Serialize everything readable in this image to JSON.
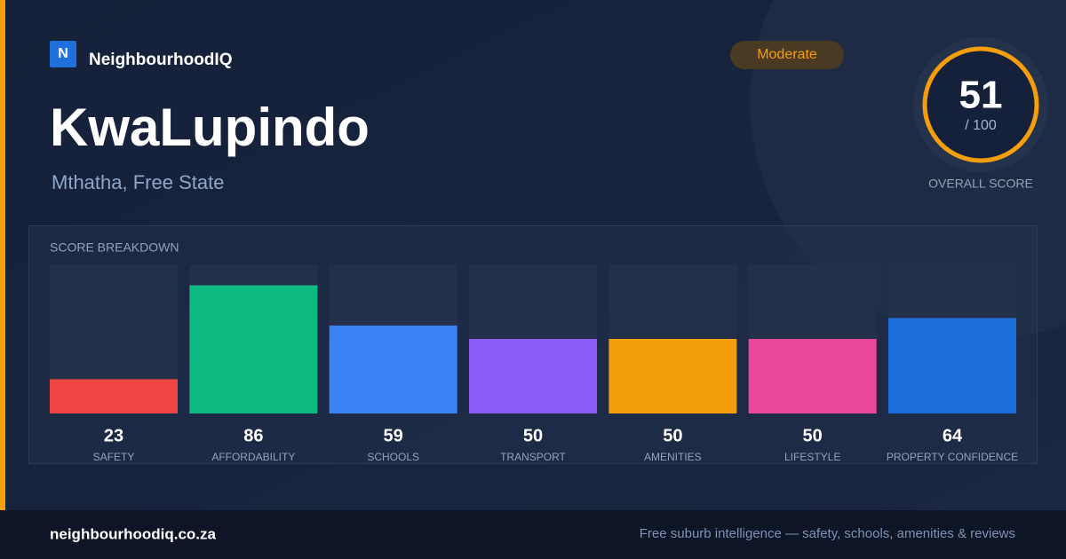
{
  "brand": {
    "logo": "N",
    "name": "NeighbourhoodIQ"
  },
  "suburb": "KwaLupindo",
  "location": "Mthatha, Free State",
  "rating": "Moderate",
  "overall": {
    "value": 51,
    "scale_label": "/ 100",
    "label": "OVERALL SCORE"
  },
  "chart_data": {
    "type": "bar",
    "title": "SCORE BREAKDOWN",
    "categories": [
      "SAFETY",
      "AFFORDABILITY",
      "SCHOOLS",
      "TRANSPORT",
      "AMENITIES",
      "LIFESTYLE",
      "PROPERTY CONFIDENCE"
    ],
    "values": [
      23,
      86,
      59,
      50,
      50,
      50,
      64
    ],
    "colors": [
      "#ef4444",
      "#10b981",
      "#3b82f6",
      "#8b5cf6",
      "#f59e0b",
      "#ec4899",
      "#1d6fdc"
    ],
    "ylim": [
      0,
      100
    ]
  },
  "footer": {
    "site": "neighbourhoodiq.co.za",
    "tagline": "Free suburb intelligence — safety, schools, amenities & reviews"
  }
}
